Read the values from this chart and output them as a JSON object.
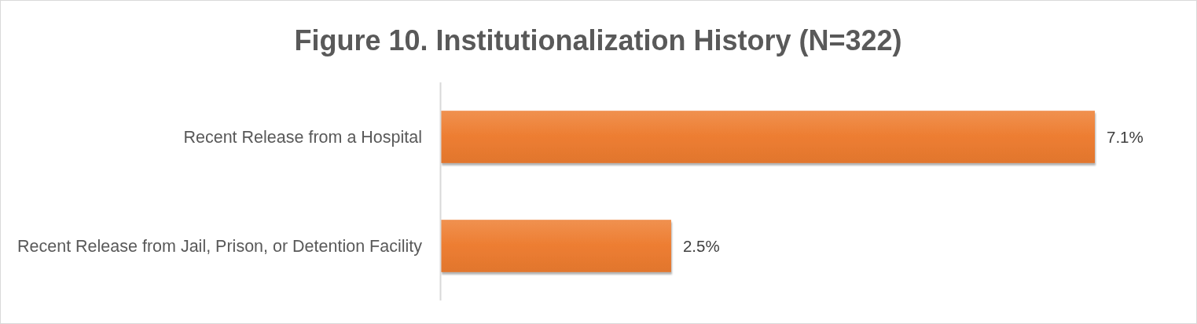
{
  "chart_data": {
    "type": "bar",
    "orientation": "horizontal",
    "title": "Figure 10. Institutionalization History (N=322)",
    "categories": [
      "Recent Release from a Hospital",
      "Recent Release from Jail, Prison, or Detention Facility"
    ],
    "values": [
      7.1,
      2.5
    ],
    "value_labels": [
      "7.1%",
      "2.5%"
    ],
    "color": "#ed7d31",
    "tick_labels": "y"
  }
}
